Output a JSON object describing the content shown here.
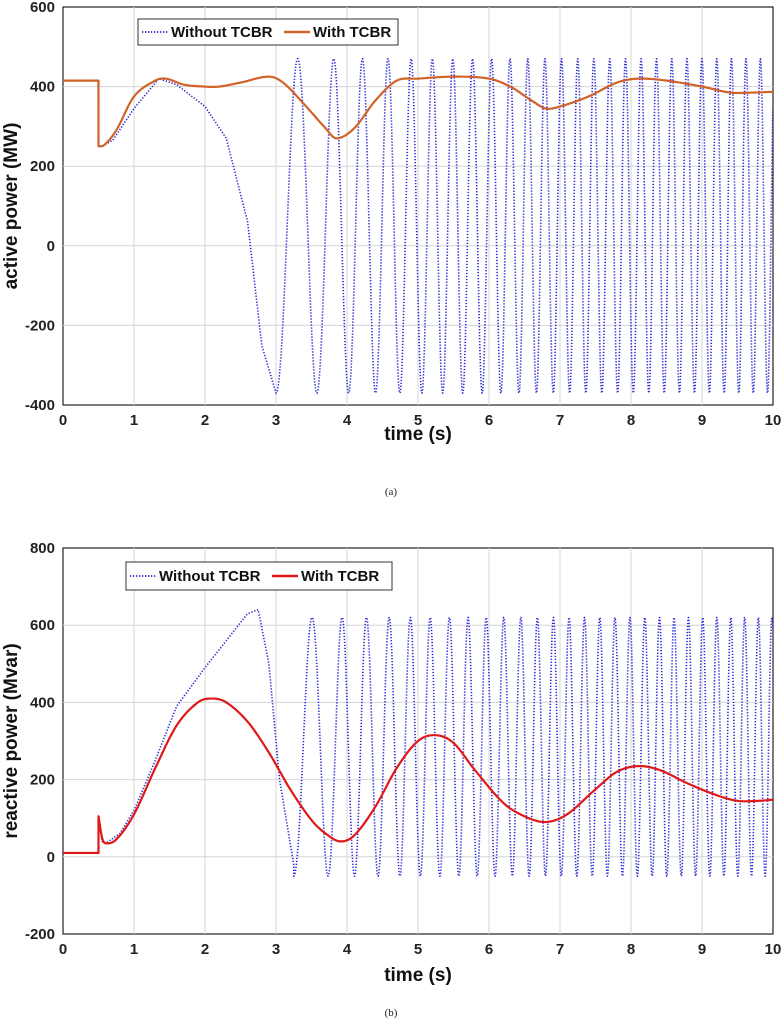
{
  "chart_data": [
    {
      "type": "line",
      "panel_label": "(a)",
      "xlabel": "time (s)",
      "ylabel": "active power (MW)",
      "xlim": [
        0,
        10
      ],
      "ylim": [
        -400,
        600
      ],
      "xticks": [
        0,
        1,
        2,
        3,
        4,
        5,
        6,
        7,
        8,
        9,
        10
      ],
      "yticks": [
        -400,
        -200,
        0,
        200,
        400,
        600
      ],
      "grid": true,
      "legend": "top-left",
      "series": [
        {
          "name": "Without TCBR",
          "color": "#2a2ad6",
          "style": "dotted",
          "envelope": {
            "x": [
              0,
              0.5,
              0.5,
              0.55,
              0.7,
              1.0,
              1.35,
              1.6,
              2.0,
              2.3,
              2.6,
              2.8,
              3.0
            ],
            "y": [
              415,
              415,
              250,
              250,
              265,
              345,
              420,
              405,
              350,
              270,
              60,
              -250,
              -370
            ],
            "oscillation": {
              "start_time": 3.0,
              "periods_s": [
                [
                  3.0,
                  0.65
                ],
                [
                  4.0,
                  0.4
                ],
                [
                  5.0,
                  0.3
                ],
                [
                  7.0,
                  0.23
                ],
                [
                  10.0,
                  0.2
                ]
              ],
              "peak_max": 470,
              "trough_min": -370
            }
          }
        },
        {
          "name": "With TCBR",
          "color": "#d2622a",
          "style": "solid",
          "x": [
            0,
            0.5,
            0.5,
            0.58,
            0.75,
            1.0,
            1.3,
            1.45,
            1.7,
            2.0,
            2.2,
            2.5,
            2.9,
            3.1,
            3.4,
            3.7,
            3.85,
            4.1,
            4.4,
            4.7,
            5.0,
            5.5,
            6.0,
            6.3,
            6.6,
            6.8,
            7.0,
            7.4,
            7.8,
            8.1,
            8.5,
            9.0,
            9.4,
            9.7,
            10.0
          ],
          "y": [
            415,
            415,
            250,
            253,
            290,
            375,
            415,
            420,
            405,
            400,
            400,
            410,
            425,
            410,
            355,
            295,
            270,
            295,
            365,
            415,
            420,
            425,
            420,
            400,
            365,
            345,
            350,
            375,
            410,
            420,
            415,
            400,
            385,
            385,
            387
          ]
        }
      ]
    },
    {
      "type": "line",
      "panel_label": "(b)",
      "xlabel": "time (s)",
      "ylabel": "reactive power (Mvar)",
      "xlim": [
        0,
        10
      ],
      "ylim": [
        -200,
        800
      ],
      "xticks": [
        0,
        1,
        2,
        3,
        4,
        5,
        6,
        7,
        8,
        9,
        10
      ],
      "yticks": [
        -200,
        0,
        200,
        400,
        600,
        800
      ],
      "grid": true,
      "legend": "top-left",
      "series": [
        {
          "name": "Without TCBR",
          "color": "#2a2ad6",
          "style": "dotted",
          "envelope": {
            "x": [
              0,
              0.5,
              0.5,
              0.55,
              0.6,
              0.8,
              1.0,
              1.3,
              1.6,
              2.0,
              2.3,
              2.6,
              2.75,
              2.9,
              3.05,
              3.25
            ],
            "y": [
              10,
              10,
              100,
              40,
              35,
              60,
              120,
              250,
              390,
              490,
              560,
              630,
              640,
              500,
              200,
              -20
            ],
            "oscillation": {
              "start_time": 3.25,
              "periods_s": [
                [
                  3.25,
                  0.55
                ],
                [
                  4.0,
                  0.35
                ],
                [
                  5.0,
                  0.28
                ],
                [
                  7.0,
                  0.22
                ],
                [
                  10.0,
                  0.19
                ]
              ],
              "peak_max": 620,
              "trough_min": -50
            }
          }
        },
        {
          "name": "With TCBR",
          "color": "#e01818",
          "style": "solid",
          "x": [
            0,
            0.5,
            0.5,
            0.55,
            0.6,
            0.75,
            1.0,
            1.3,
            1.6,
            1.9,
            2.1,
            2.3,
            2.6,
            2.9,
            3.2,
            3.5,
            3.7,
            3.9,
            4.1,
            4.4,
            4.7,
            5.0,
            5.25,
            5.5,
            5.8,
            6.2,
            6.5,
            6.8,
            7.1,
            7.5,
            7.8,
            8.1,
            8.4,
            8.8,
            9.2,
            9.5,
            9.8,
            10.0
          ],
          "y": [
            10,
            10,
            105,
            50,
            35,
            45,
            110,
            230,
            340,
            400,
            410,
            400,
            350,
            270,
            175,
            95,
            60,
            40,
            55,
            130,
            230,
            300,
            315,
            295,
            225,
            140,
            105,
            90,
            110,
            175,
            220,
            235,
            225,
            190,
            160,
            145,
            145,
            148
          ]
        }
      ]
    }
  ]
}
